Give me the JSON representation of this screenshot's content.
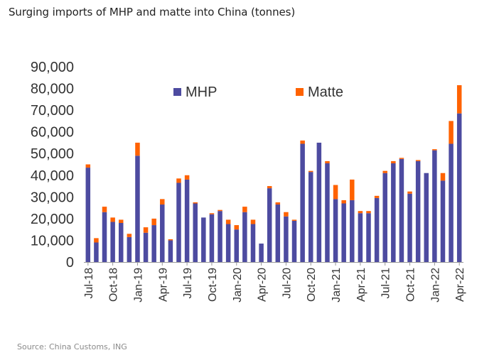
{
  "title": "Surging imports of MHP and matte into China (tonnes)",
  "source": "Source: China Customs, ING",
  "chart_data": {
    "type": "bar",
    "stacked": true,
    "title": "Surging imports of MHP and matte into China (tonnes)",
    "xlabel": "",
    "ylabel": "",
    "ylim": [
      0,
      90000
    ],
    "yticks": [
      0,
      10000,
      20000,
      30000,
      40000,
      50000,
      60000,
      70000,
      80000,
      90000
    ],
    "ytick_labels": [
      "0",
      "10,000",
      "20,000",
      "30,000",
      "40,000",
      "50,000",
      "60,000",
      "70,000",
      "80,000",
      "90,000"
    ],
    "grid": false,
    "legend_position": "top",
    "categories": [
      "Jul-18",
      "Aug-18",
      "Sep-18",
      "Oct-18",
      "Nov-18",
      "Dec-18",
      "Jan-19",
      "Feb-19",
      "Mar-19",
      "Apr-19",
      "May-19",
      "Jun-19",
      "Jul-19",
      "Aug-19",
      "Sep-19",
      "Oct-19",
      "Nov-19",
      "Dec-19",
      "Jan-20",
      "Feb-20",
      "Mar-20",
      "Apr-20",
      "May-20",
      "Jun-20",
      "Jul-20",
      "Aug-20",
      "Sep-20",
      "Oct-20",
      "Nov-20",
      "Dec-20",
      "Jan-21",
      "Feb-21",
      "Mar-21",
      "Apr-21",
      "May-21",
      "Jun-21",
      "Jul-21",
      "Aug-21",
      "Sep-21",
      "Oct-21",
      "Nov-21",
      "Dec-21",
      "Jan-22",
      "Feb-22",
      "Mar-22",
      "Apr-22"
    ],
    "x_tick_labels": [
      "Jul-18",
      "Oct-18",
      "Jan-19",
      "Apr-19",
      "Jul-19",
      "Oct-19",
      "Jan-20",
      "Apr-20",
      "Jul-20",
      "Oct-20",
      "Jan-21",
      "Apr-21",
      "Jul-21",
      "Oct-21",
      "Jan-22",
      "Apr-22"
    ],
    "series": [
      {
        "name": "MHP",
        "color": "#4d4ba0",
        "values": [
          43500,
          9000,
          23000,
          18500,
          18000,
          11500,
          49000,
          13500,
          17000,
          26500,
          10000,
          36500,
          38000,
          27000,
          20500,
          22000,
          23500,
          17500,
          15000,
          23000,
          17500,
          8500,
          34000,
          26500,
          21000,
          19000,
          54500,
          41500,
          55000,
          45500,
          29000,
          27000,
          28500,
          22500,
          22500,
          29500,
          41000,
          45500,
          47500,
          31500,
          46500,
          41000,
          51500,
          37500,
          54500,
          68500
        ]
      },
      {
        "name": "Matte",
        "color": "#ff6200",
        "values": [
          1500,
          2000,
          2500,
          2000,
          1500,
          1500,
          6000,
          2500,
          3000,
          2500,
          500,
          2000,
          2000,
          500,
          0,
          500,
          500,
          2000,
          2000,
          2500,
          2000,
          0,
          1000,
          1000,
          2000,
          500,
          1500,
          500,
          0,
          1000,
          6500,
          1500,
          9500,
          1000,
          1000,
          1000,
          1000,
          1000,
          500,
          1000,
          500,
          0,
          500,
          3500,
          10500,
          13000
        ]
      }
    ]
  }
}
